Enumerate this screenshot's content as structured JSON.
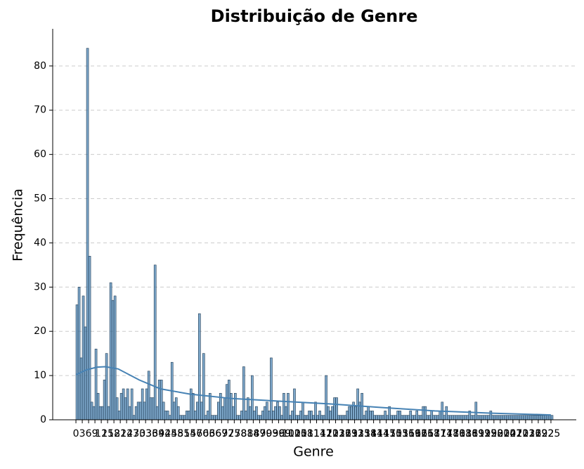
{
  "chart_data": {
    "type": "histogram",
    "title": "Distribuição de Genre",
    "x_label": "Genre",
    "y_label": "Frequência",
    "color": "#4682b4",
    "grid": true,
    "xlim": [
      -11,
      237
    ],
    "ylim": [
      0,
      88.4
    ],
    "yticks": [
      0,
      10,
      20,
      30,
      40,
      50,
      60,
      70,
      80
    ],
    "xticks": [
      0,
      3,
      6,
      9,
      12,
      15,
      18,
      21,
      24,
      27,
      30,
      33,
      36,
      39,
      42,
      45,
      48,
      51,
      54,
      57,
      60,
      63,
      66,
      69,
      72,
      75,
      78,
      81,
      84,
      87,
      90,
      93,
      96,
      99,
      102,
      105,
      108,
      111,
      114,
      117,
      120,
      123,
      126,
      129,
      132,
      135,
      138,
      141,
      144,
      147,
      150,
      153,
      156,
      159,
      162,
      165,
      168,
      171,
      174,
      177,
      180,
      183,
      186,
      189,
      192,
      195,
      198,
      201,
      204,
      207,
      210,
      213,
      216,
      219,
      222,
      225
    ],
    "bins": [
      0,
      1,
      2,
      3,
      4,
      5,
      6,
      7,
      8,
      9,
      10,
      11,
      12,
      13,
      14,
      15,
      16,
      17,
      18,
      19,
      20,
      21,
      22,
      23,
      24,
      25,
      26,
      27,
      28,
      29,
      30,
      31,
      32,
      33,
      34,
      35,
      36,
      37,
      38,
      39,
      40,
      41,
      42,
      43,
      44,
      45,
      46,
      47,
      48,
      49,
      50,
      51,
      52,
      53,
      54,
      55,
      56,
      57,
      58,
      59,
      60,
      61,
      62,
      63,
      64,
      65,
      66,
      67,
      68,
      69,
      70,
      71,
      72,
      73,
      74,
      75,
      76,
      77,
      78,
      79,
      80,
      81,
      82,
      83,
      84,
      85,
      86,
      87,
      88,
      89,
      90,
      91,
      92,
      93,
      94,
      95,
      96,
      97,
      98,
      99,
      100,
      101,
      102,
      103,
      104,
      105,
      106,
      107,
      108,
      109,
      110,
      111,
      112,
      113,
      114,
      115,
      116,
      117,
      118,
      119,
      120,
      121,
      122,
      123,
      124,
      125,
      126,
      127,
      128,
      129,
      130,
      131,
      132,
      133,
      134,
      135,
      136,
      137,
      138,
      139,
      140,
      141,
      142,
      143,
      144,
      145,
      146,
      147,
      148,
      149,
      150,
      151,
      152,
      153,
      154,
      155,
      156,
      157,
      158,
      159,
      160,
      161,
      162,
      163,
      164,
      165,
      166,
      167,
      168,
      169,
      170,
      171,
      172,
      173,
      174,
      175,
      176,
      177,
      178,
      179,
      180,
      181,
      182,
      183,
      184,
      185,
      186,
      187,
      188,
      189,
      190,
      191,
      192,
      193,
      194,
      195,
      196,
      197,
      198,
      199,
      200,
      201,
      202,
      203,
      204,
      205,
      206,
      207,
      208,
      209,
      210,
      211,
      212,
      213,
      214,
      215,
      216,
      217,
      218,
      219,
      220,
      221,
      222,
      223,
      224,
      225,
      226
    ],
    "values": [
      26,
      30,
      14,
      28,
      21,
      84,
      37,
      4,
      3,
      16,
      6,
      3,
      3,
      9,
      15,
      3,
      31,
      27,
      28,
      5,
      2,
      6,
      7,
      5,
      7,
      3,
      7,
      1,
      3,
      4,
      4,
      7,
      4,
      7,
      11,
      5,
      5,
      35,
      3,
      9,
      9,
      4,
      2,
      2,
      1,
      13,
      4,
      5,
      3,
      1,
      1,
      1,
      2,
      2,
      7,
      6,
      2,
      4,
      24,
      4,
      15,
      1,
      2,
      6,
      1,
      1,
      1,
      4,
      6,
      3,
      5,
      8,
      9,
      6,
      3,
      6,
      1,
      1,
      2,
      12,
      2,
      5,
      3,
      10,
      2,
      3,
      1,
      1,
      2,
      3,
      4,
      2,
      14,
      2,
      3,
      4,
      3,
      1,
      6,
      3,
      6,
      1,
      2,
      7,
      1,
      1,
      2,
      4,
      1,
      1,
      2,
      2,
      1,
      4,
      1,
      2,
      1,
      1,
      10,
      3,
      2,
      3,
      5,
      5,
      1,
      1,
      1,
      1,
      2,
      3,
      3,
      4,
      3,
      7,
      4,
      6,
      1,
      2,
      3,
      2,
      2,
      1,
      1,
      1,
      1,
      1,
      2,
      1,
      3,
      1,
      1,
      1,
      2,
      2,
      1,
      1,
      1,
      1,
      2,
      1,
      1,
      2,
      1,
      1,
      3,
      3,
      1,
      1,
      2,
      1,
      1,
      1,
      2,
      4,
      1,
      3,
      1,
      1,
      1,
      1,
      1,
      1,
      1,
      1,
      1,
      1,
      2,
      1,
      1,
      4,
      1,
      1,
      1,
      1,
      1,
      1,
      2,
      1,
      1,
      1,
      1,
      1,
      1,
      1,
      1,
      1,
      1,
      1,
      1,
      1,
      1,
      1,
      1,
      1,
      1,
      1,
      1,
      1,
      1,
      1,
      1,
      1,
      1,
      1,
      1,
      1
    ],
    "kde": {
      "x": [
        0,
        5,
        10,
        14,
        20,
        30,
        40,
        54,
        74,
        97,
        120,
        147,
        170,
        197,
        225
      ],
      "values": [
        10.2,
        11.3,
        11.9,
        12,
        11.5,
        9,
        7,
        5.8,
        4.8,
        4.2,
        3.6,
        2.7,
        2,
        1.5,
        1.1
      ]
    }
  }
}
